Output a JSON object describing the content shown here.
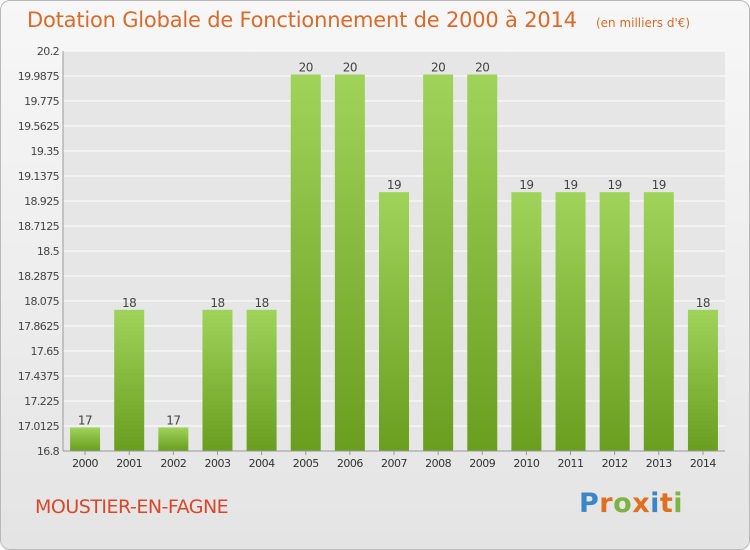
{
  "header": {
    "title": "Dotation Globale de Fonctionnement de 2000 à 2014",
    "unit": "(en milliers d'€)"
  },
  "footer": {
    "commune": "MOUSTIER-EN-FAGNE",
    "brand": "Proxiti",
    "brand_colors": [
      "#3a86c8",
      "#e0701f",
      "#7cb342",
      "#e0701f",
      "#3a86c8",
      "#e0701f",
      "#7cb342"
    ]
  },
  "colors": {
    "bar_top": "#9fd35a",
    "bar_bottom": "#6a9e1f",
    "title": "#d96a2a",
    "commune": "#d9472b",
    "grid": "#ffffff",
    "plot_bg": "#e6e6e6"
  },
  "chart_data": {
    "type": "bar",
    "categories": [
      "2000",
      "2001",
      "2002",
      "2003",
      "2004",
      "2005",
      "2006",
      "2007",
      "2008",
      "2009",
      "2010",
      "2011",
      "2012",
      "2013",
      "2014"
    ],
    "values": [
      17,
      18,
      17,
      18,
      18,
      20,
      20,
      19,
      20,
      20,
      19,
      19,
      19,
      19,
      18
    ],
    "data_labels": [
      "17",
      "18",
      "17",
      "18",
      "18",
      "20",
      "20",
      "19",
      "20",
      "20",
      "19",
      "19",
      "19",
      "19",
      "18"
    ],
    "ylim": [
      16.8,
      20.2
    ],
    "yticks": [
      16.8,
      17.0125,
      17.225,
      17.4375,
      17.65,
      17.8625,
      18.075,
      18.2875,
      18.5,
      18.7125,
      18.925,
      19.1375,
      19.35,
      19.5625,
      19.775,
      19.9875,
      20.2
    ],
    "ytick_labels": [
      "16.8",
      "17.0125",
      "17.225",
      "17.4375",
      "17.65",
      "17.8625",
      "18.075",
      "18.2875",
      "18.5",
      "18.7125",
      "18.925",
      "19.1375",
      "19.35",
      "19.5625",
      "19.775",
      "19.9875",
      "20.2"
    ],
    "grid": true,
    "title": "Dotation Globale de Fonctionnement de 2000 à 2014"
  }
}
